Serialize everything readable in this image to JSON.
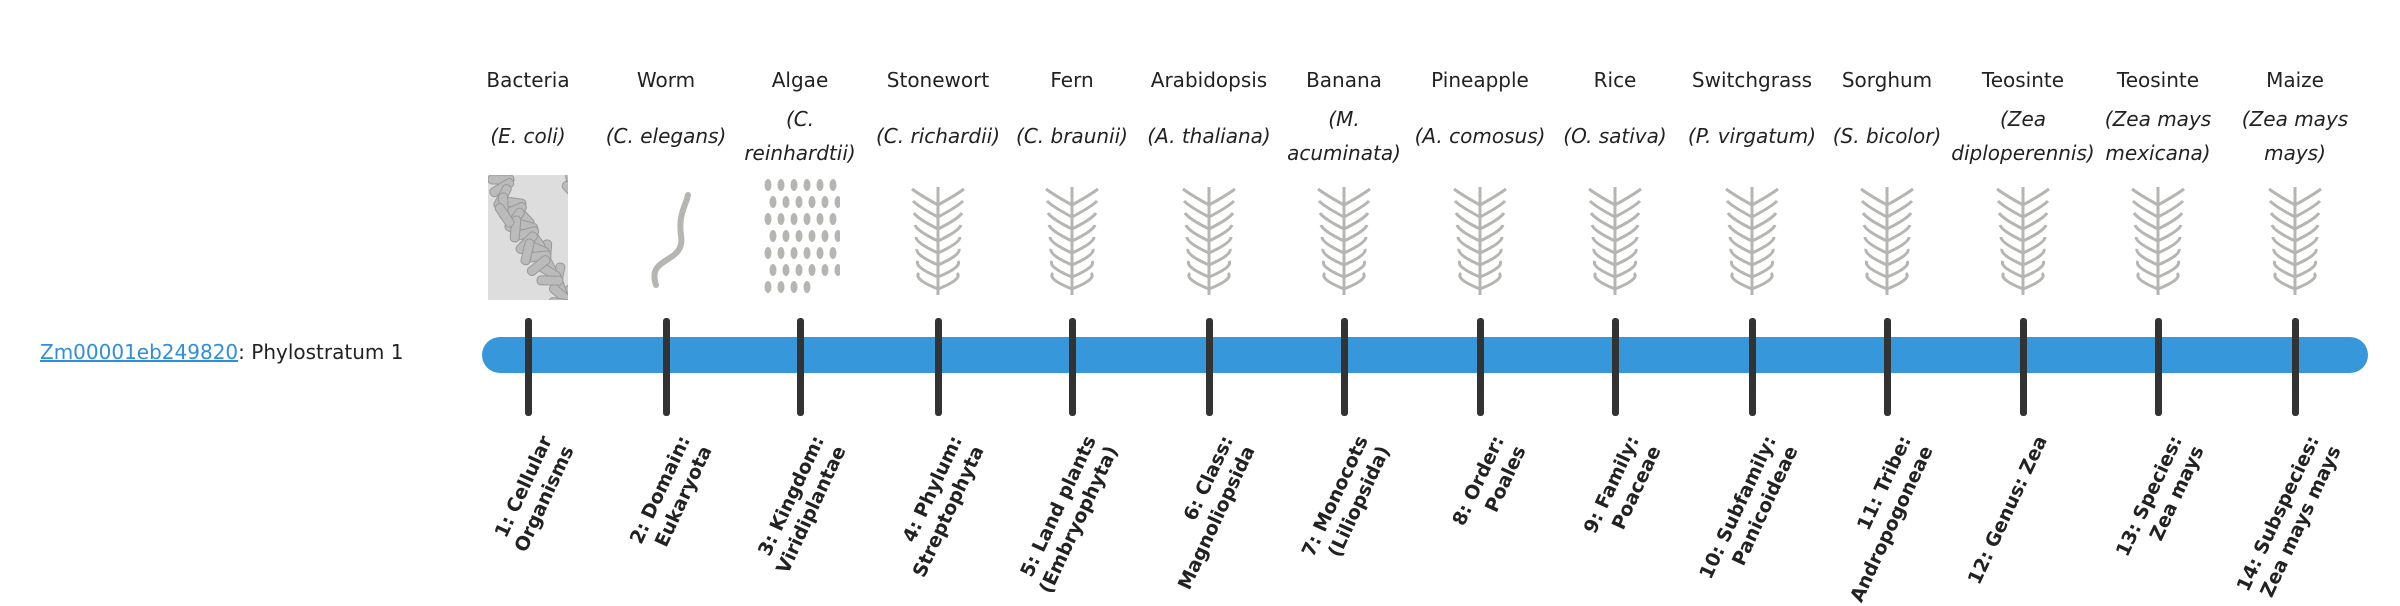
{
  "gene": {
    "id": "Zm00001eb249820",
    "suffix": ": Phylostratum 1"
  },
  "colors": {
    "bar": "#3697db",
    "tick": "#333333",
    "link": "#2f8fdd"
  },
  "organisms": [
    {
      "common": "Bacteria",
      "scientific": "(E. coli)",
      "icon": "bacteria-illustration",
      "level": "1: Cellular Organisms"
    },
    {
      "common": "Worm",
      "scientific": "(C. elegans)",
      "icon": "worm-illustration",
      "level": "2: Domain: Eukaryota"
    },
    {
      "common": "Algae",
      "scientific": "(C. reinhardtii)",
      "icon": "algae-illustration",
      "level": "3: Kingdom: Viridiplantae"
    },
    {
      "common": "Stonewort",
      "scientific": "(C. richardii)",
      "icon": "stonewort-illustration",
      "level": "4: Phylum: Streptophyta"
    },
    {
      "common": "Fern",
      "scientific": "(C. braunii)",
      "icon": "fern-illustration",
      "level": "5: Land plants (Embryophyta)"
    },
    {
      "common": "Arabidopsis",
      "scientific": "(A. thaliana)",
      "icon": "arabidopsis-illustration",
      "level": "6: Class: Magnoliopsida"
    },
    {
      "common": "Banana",
      "scientific": "(M. acuminata)",
      "icon": "banana-illustration",
      "level": "7: Monocots (Liliopsida)"
    },
    {
      "common": "Pineapple",
      "scientific": "(A. comosus)",
      "icon": "pineapple-illustration",
      "level": "8: Order: Poales"
    },
    {
      "common": "Rice",
      "scientific": "(O. sativa)",
      "icon": "rice-illustration",
      "level": "9: Family: Poaceae"
    },
    {
      "common": "Switchgrass",
      "scientific": "(P. virgatum)",
      "icon": "switchgrass-illustration",
      "level": "10: Subfamily: Panicoideae"
    },
    {
      "common": "Sorghum",
      "scientific": "(S. bicolor)",
      "icon": "sorghum-illustration",
      "level": "11: Tribe: Andropogoneae"
    },
    {
      "common": "Teosinte",
      "scientific": "(Zea diploperennis)",
      "icon": "teosinte-illustration",
      "level": "12: Genus: Zea"
    },
    {
      "common": "Teosinte",
      "scientific": "(Zea mays mexicana)",
      "icon": "teosinte-illustration",
      "level": "13: Species: Zea mays"
    },
    {
      "common": "Maize",
      "scientific": "(Zea mays mays)",
      "icon": "maize-illustration",
      "level": "14: Subspecies: Zea mays mays"
    }
  ]
}
